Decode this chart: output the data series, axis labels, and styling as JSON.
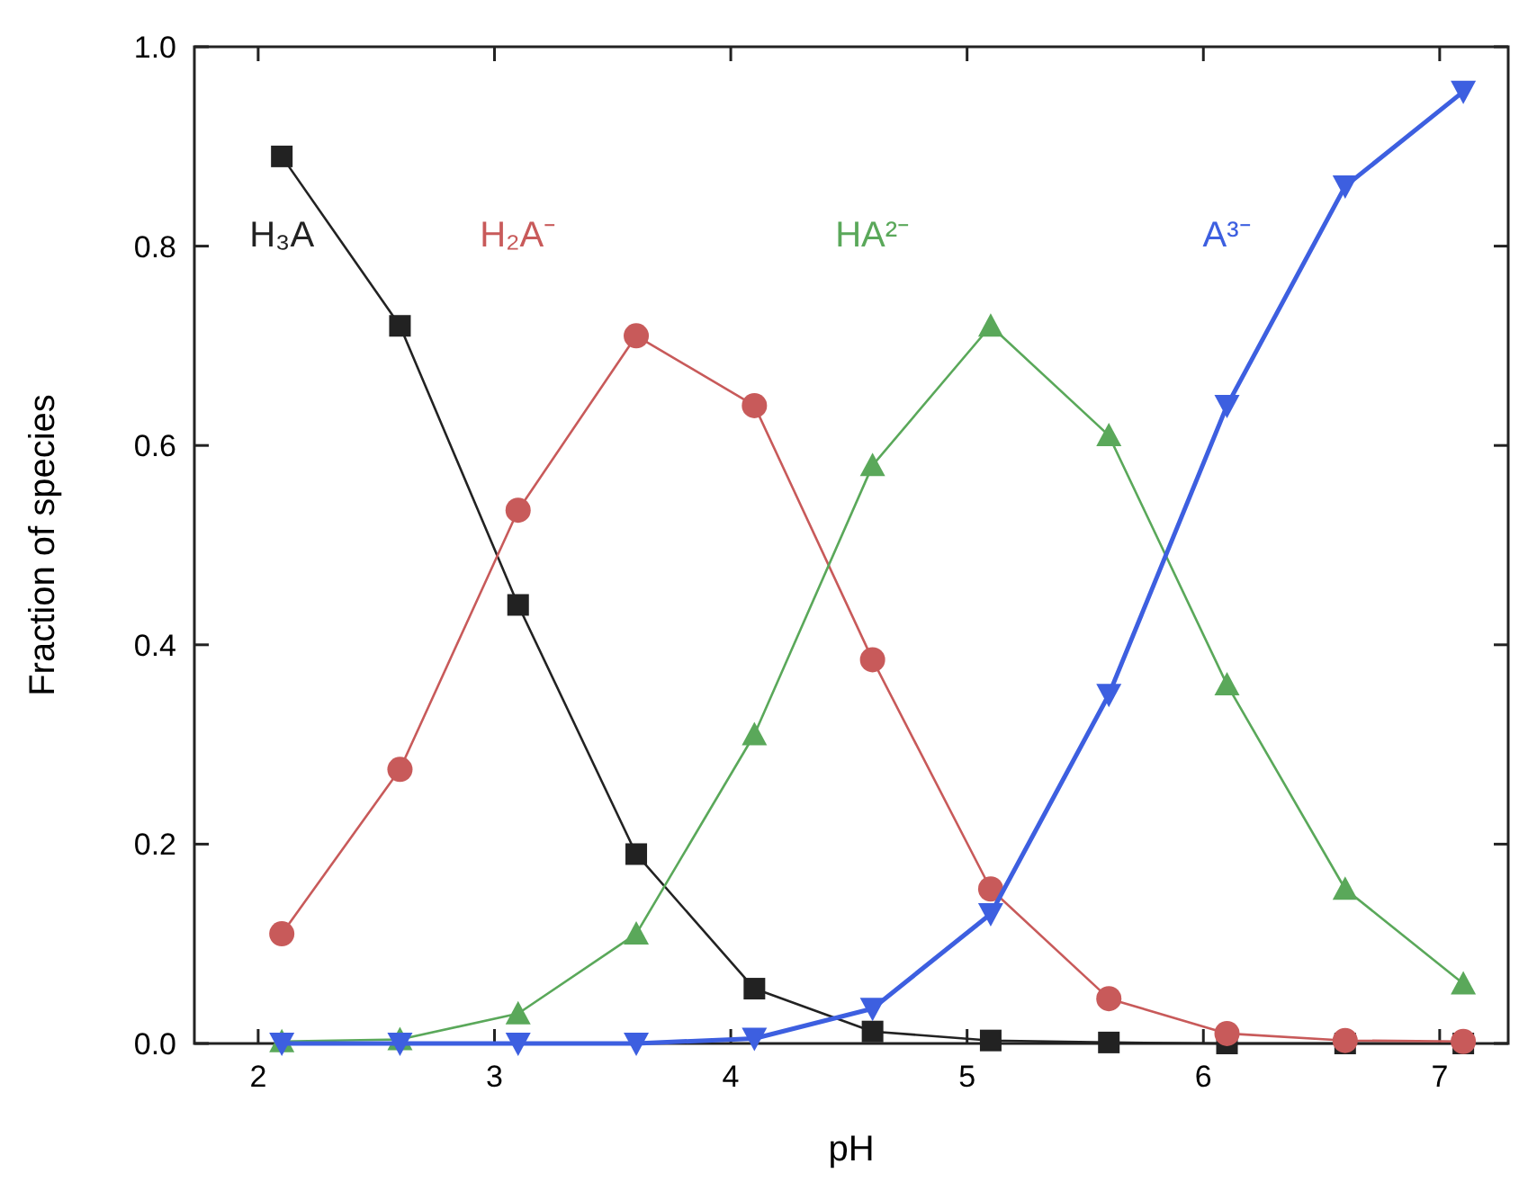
{
  "chart_data": {
    "type": "line",
    "xlabel": "pH",
    "ylabel": "Fraction of species",
    "x": [
      2.1,
      2.6,
      3.1,
      3.6,
      4.1,
      4.6,
      5.1,
      5.6,
      6.1,
      6.6,
      7.1
    ],
    "xlim": [
      1.73,
      7.29
    ],
    "xticks": [
      2,
      3,
      4,
      5,
      6,
      7
    ],
    "ylim": [
      0,
      1
    ],
    "yticks": [
      {
        "value": 0,
        "label": "0.0"
      },
      {
        "value": 0.2,
        "label": "0.2"
      },
      {
        "value": 0.4,
        "label": "0.4"
      },
      {
        "value": 0.6,
        "label": "0.6"
      },
      {
        "value": 0.8,
        "label": "0.8"
      },
      {
        "value": 1,
        "label": "1.0"
      }
    ],
    "grid": false,
    "series": [
      {
        "name": "H₃A",
        "color": "#222222",
        "marker": "square",
        "values": [
          0.89,
          0.72,
          0.44,
          0.19,
          0.055,
          0.012,
          0.003,
          0.001,
          0,
          0,
          0
        ]
      },
      {
        "name": "H₂A⁻",
        "color": "#c85a5a",
        "marker": "circle",
        "values": [
          0.11,
          0.275,
          0.535,
          0.71,
          0.64,
          0.385,
          0.155,
          0.045,
          0.01,
          0.003,
          0.002
        ]
      },
      {
        "name": "HA²⁻",
        "color": "#5aa85a",
        "marker": "triangle",
        "values": [
          0.002,
          0.004,
          0.03,
          0.11,
          0.31,
          0.58,
          0.72,
          0.61,
          0.36,
          0.155,
          0.06
        ]
      },
      {
        "name": "A³⁻",
        "color": "#3d5fe0",
        "marker": "triangle_down",
        "values": [
          0,
          0,
          0,
          0,
          0.005,
          0.035,
          0.13,
          0.35,
          0.64,
          0.86,
          0.955
        ]
      }
    ]
  }
}
